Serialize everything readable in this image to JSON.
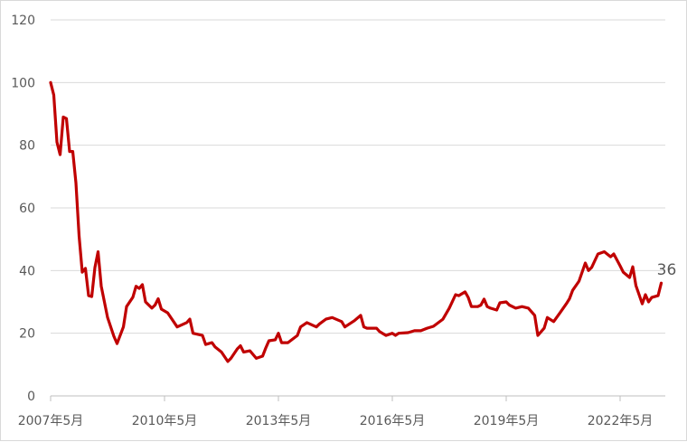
{
  "chart_data": {
    "type": "line",
    "title": "",
    "xlabel": "",
    "ylabel": "",
    "ylim": [
      0,
      120
    ],
    "yticks": [
      "0",
      "20",
      "40",
      "60",
      "80",
      "100",
      "120"
    ],
    "xticks": [
      {
        "date": "2007-05",
        "label": "2007年5月"
      },
      {
        "date": "2010-05",
        "label": "2010年5月"
      },
      {
        "date": "2013-05",
        "label": "2013年5月"
      },
      {
        "date": "2016-05",
        "label": "2016年5月"
      },
      {
        "date": "2019-05",
        "label": "2019年5月"
      },
      {
        "date": "2022-05",
        "label": "2022年5月"
      }
    ],
    "grid": "horizontal",
    "line_color": "#c00000",
    "end_label": "36",
    "points": [
      [
        "2007-05",
        100
      ],
      [
        "2007-06",
        96
      ],
      [
        "2007-07",
        81
      ],
      [
        "2007-08",
        77
      ],
      [
        "2007-09",
        89
      ],
      [
        "2007-10",
        88.5
      ],
      [
        "2007-11",
        78
      ],
      [
        "2007-12",
        78
      ],
      [
        "2008-01",
        68
      ],
      [
        "2008-02",
        51
      ],
      [
        "2008-03",
        39.5
      ],
      [
        "2008-04",
        40.7
      ],
      [
        "2008-05",
        32
      ],
      [
        "2008-06",
        31.7
      ],
      [
        "2008-07",
        41
      ],
      [
        "2008-08",
        46
      ],
      [
        "2008-09",
        35
      ],
      [
        "2008-11",
        25
      ],
      [
        "2009-01",
        19
      ],
      [
        "2009-02",
        16.7
      ],
      [
        "2009-04",
        22
      ],
      [
        "2009-05",
        28.5
      ],
      [
        "2009-07",
        31.5
      ],
      [
        "2009-08",
        35
      ],
      [
        "2009-09",
        34.3
      ],
      [
        "2009-10",
        35.5
      ],
      [
        "2009-11",
        30
      ],
      [
        "2010-01",
        28
      ],
      [
        "2010-02",
        29
      ],
      [
        "2010-03",
        31
      ],
      [
        "2010-04",
        27.7
      ],
      [
        "2010-06",
        26.5
      ],
      [
        "2010-09",
        22
      ],
      [
        "2010-12",
        23.4
      ],
      [
        "2011-01",
        24.5
      ],
      [
        "2011-02",
        20
      ],
      [
        "2011-05",
        19.3
      ],
      [
        "2011-06",
        16.4
      ],
      [
        "2011-08",
        17
      ],
      [
        "2011-09",
        15.6
      ],
      [
        "2011-11",
        14
      ],
      [
        "2012-01",
        11
      ],
      [
        "2012-02",
        12
      ],
      [
        "2012-04",
        15
      ],
      [
        "2012-05",
        16
      ],
      [
        "2012-06",
        14
      ],
      [
        "2012-08",
        14.4
      ],
      [
        "2012-10",
        12
      ],
      [
        "2012-12",
        12.7
      ],
      [
        "2013-01",
        15.3
      ],
      [
        "2013-02",
        17.6
      ],
      [
        "2013-04",
        17.9
      ],
      [
        "2013-05",
        20
      ],
      [
        "2013-06",
        17
      ],
      [
        "2013-08",
        17
      ],
      [
        "2013-11",
        19.3
      ],
      [
        "2013-12",
        22
      ],
      [
        "2014-02",
        23.4
      ],
      [
        "2014-05",
        22
      ],
      [
        "2014-06",
        23
      ],
      [
        "2014-08",
        24.5
      ],
      [
        "2014-10",
        25
      ],
      [
        "2015-01",
        23.7
      ],
      [
        "2015-02",
        22
      ],
      [
        "2015-05",
        24
      ],
      [
        "2015-07",
        25.7
      ],
      [
        "2015-08",
        22
      ],
      [
        "2015-09",
        21.6
      ],
      [
        "2015-12",
        21.6
      ],
      [
        "2016-01",
        20.5
      ],
      [
        "2016-03",
        19.3
      ],
      [
        "2016-05",
        20
      ],
      [
        "2016-06",
        19.3
      ],
      [
        "2016-07",
        20
      ],
      [
        "2016-10",
        20.2
      ],
      [
        "2016-12",
        20.8
      ],
      [
        "2017-02",
        20.8
      ],
      [
        "2017-04",
        21.6
      ],
      [
        "2017-06",
        22.2
      ],
      [
        "2017-09",
        24.5
      ],
      [
        "2017-11",
        28
      ],
      [
        "2018-01",
        32.3
      ],
      [
        "2018-02",
        32
      ],
      [
        "2018-04",
        33.2
      ],
      [
        "2018-05",
        31.4
      ],
      [
        "2018-06",
        28.5
      ],
      [
        "2018-08",
        28.5
      ],
      [
        "2018-09",
        29
      ],
      [
        "2018-10",
        30.9
      ],
      [
        "2018-11",
        28.5
      ],
      [
        "2018-12",
        28
      ],
      [
        "2019-02",
        27.4
      ],
      [
        "2019-03",
        29.7
      ],
      [
        "2019-05",
        30
      ],
      [
        "2019-06",
        29
      ],
      [
        "2019-08",
        28
      ],
      [
        "2019-10",
        28.5
      ],
      [
        "2019-12",
        28
      ],
      [
        "2020-02",
        25.7
      ],
      [
        "2020-03",
        19.3
      ],
      [
        "2020-05",
        21.6
      ],
      [
        "2020-06",
        25
      ],
      [
        "2020-08",
        23.7
      ],
      [
        "2020-10",
        26.5
      ],
      [
        "2020-12",
        29.4
      ],
      [
        "2021-01",
        31
      ],
      [
        "2021-02",
        33.7
      ],
      [
        "2021-04",
        36.6
      ],
      [
        "2021-06",
        42.4
      ],
      [
        "2021-07",
        40
      ],
      [
        "2021-08",
        41
      ],
      [
        "2021-10",
        45.3
      ],
      [
        "2021-12",
        46
      ],
      [
        "2022-02",
        44.4
      ],
      [
        "2022-03",
        45.3
      ],
      [
        "2022-05",
        41.5
      ],
      [
        "2022-06",
        39.5
      ],
      [
        "2022-08",
        37.8
      ],
      [
        "2022-09",
        41.2
      ],
      [
        "2022-10",
        35.2
      ],
      [
        "2022-11",
        32.3
      ],
      [
        "2022-12",
        29.4
      ],
      [
        "2023-01",
        32.3
      ],
      [
        "2023-02",
        30
      ],
      [
        "2023-03",
        31.4
      ],
      [
        "2023-05",
        32
      ],
      [
        "2023-06",
        36
      ]
    ]
  }
}
